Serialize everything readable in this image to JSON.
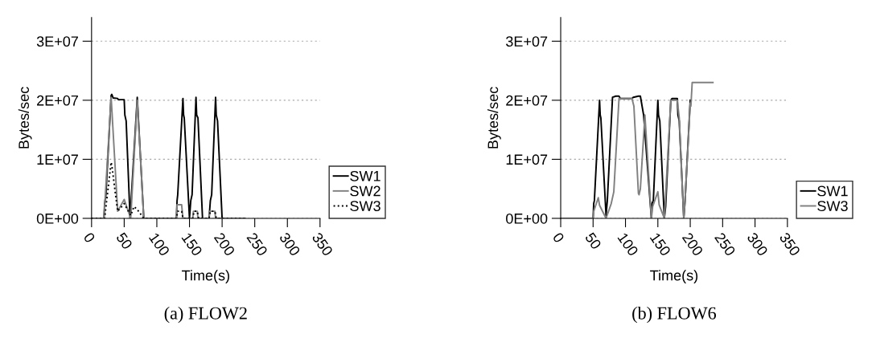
{
  "chart_data": [
    {
      "type": "line",
      "title": "(a) FLOW2",
      "xlabel": "Time(s)",
      "ylabel": "Bytes/sec",
      "xlim": [
        0,
        350
      ],
      "xticks": [
        0,
        50,
        100,
        150,
        200,
        250,
        300,
        350
      ],
      "ylim": [
        0,
        34000000
      ],
      "yticks": [
        {
          "value": 0,
          "label": "0E+00"
        },
        {
          "value": 10000000,
          "label": "1E+07"
        },
        {
          "value": 20000000,
          "label": "2E+07"
        },
        {
          "value": 30000000,
          "label": "3E+07"
        }
      ],
      "grid": "y",
      "legend": "right",
      "marker": "none",
      "series": [
        {
          "name": "SW1",
          "color": "#000000",
          "line_style": "solid",
          "x": [
            0,
            19,
            20,
            22,
            30,
            31,
            33,
            40,
            41,
            50,
            51,
            53,
            59,
            70,
            80,
            130,
            131,
            132,
            140,
            141,
            142,
            150,
            152,
            154,
            160,
            161,
            163,
            170,
            180,
            182,
            184,
            190,
            191,
            193,
            200,
            235
          ],
          "values": [
            0,
            0,
            2500000,
            4000000,
            20800000,
            21000000,
            20400000,
            20300000,
            20100000,
            20100000,
            17500000,
            16500000,
            0,
            20500000,
            0,
            0,
            3000000,
            4000000,
            20300000,
            17500000,
            17000000,
            0,
            3000000,
            4000000,
            20500000,
            17500000,
            17000000,
            0,
            0,
            3000000,
            4000000,
            20500000,
            17500000,
            16500000,
            0,
            0
          ]
        },
        {
          "name": "SW2",
          "color": "#808080",
          "line_style": "solid",
          "x": [
            0,
            19,
            30,
            40,
            50,
            60,
            70,
            80,
            130,
            131,
            138,
            140,
            155,
            156,
            162,
            163,
            180,
            181,
            189,
            190,
            235
          ],
          "values": [
            0,
            0,
            20500000,
            1200000,
            3200000,
            0,
            20000000,
            0,
            0,
            2300000,
            2300000,
            0,
            0,
            1200000,
            1200000,
            0,
            0,
            1200000,
            1200000,
            0,
            0
          ]
        },
        {
          "name": "SW3",
          "color": "#000000",
          "line_style": "dotted",
          "x": [
            0,
            20,
            30,
            31,
            40,
            50,
            55,
            60,
            65,
            70,
            80,
            130,
            132,
            138,
            140,
            155,
            157,
            162,
            164,
            180,
            182,
            189,
            191,
            235
          ],
          "values": [
            0,
            0,
            9500000,
            9000000,
            1200000,
            2500000,
            1500000,
            500000,
            2000000,
            1500000,
            0,
            0,
            1200000,
            1200000,
            0,
            0,
            1200000,
            1200000,
            0,
            0,
            1200000,
            1200000,
            0,
            0
          ]
        }
      ]
    },
    {
      "type": "line",
      "title": "(b) FLOW6",
      "xlabel": "Time(s)",
      "ylabel": "Bytes/sec",
      "xlim": [
        0,
        350
      ],
      "xticks": [
        0,
        50,
        100,
        150,
        200,
        250,
        300,
        350
      ],
      "ylim": [
        0,
        34000000
      ],
      "yticks": [
        {
          "value": 0,
          "label": "0E+00"
        },
        {
          "value": 10000000,
          "label": "1E+07"
        },
        {
          "value": 20000000,
          "label": "2E+07"
        },
        {
          "value": 30000000,
          "label": "3E+07"
        }
      ],
      "grid": "y",
      "legend": "right",
      "marker": "none",
      "series": [
        {
          "name": "SW1",
          "color": "#000000",
          "line_style": "solid",
          "x": [
            0,
            50,
            51,
            52,
            60,
            61,
            62,
            70,
            72,
            80,
            85,
            90,
            92,
            110,
            112,
            120,
            123,
            128,
            140,
            141,
            143,
            150,
            151,
            153,
            160,
            162,
            170,
            172,
            180,
            181,
            183,
            190,
            192,
            200
          ],
          "values": [
            0,
            0,
            2500000,
            3000000,
            20000000,
            17500000,
            17000000,
            500000,
            3000000,
            20500000,
            20700000,
            20700000,
            20300000,
            20300000,
            20500000,
            20700000,
            20700000,
            17500000,
            0,
            2500000,
            3000000,
            20000000,
            17500000,
            16500000,
            0,
            2000000,
            20000000,
            20300000,
            20300000,
            17500000,
            16500000,
            0,
            3000000,
            20000000
          ]
        },
        {
          "name": "SW3",
          "color": "#808080",
          "line_style": "solid",
          "x": [
            0,
            50,
            51,
            58,
            60,
            70,
            78,
            82,
            90,
            110,
            113,
            120,
            121,
            123,
            130,
            140,
            142,
            150,
            152,
            160,
            170,
            180,
            183,
            190,
            192,
            200,
            201,
            203,
            235
          ],
          "values": [
            0,
            0,
            1200000,
            3500000,
            2200000,
            0,
            2500000,
            4500000,
            20300000,
            20300000,
            19000000,
            4200000,
            4000000,
            5000000,
            17500000,
            0,
            2000000,
            4500000,
            2300000,
            0,
            20000000,
            20000000,
            17000000,
            0,
            3000000,
            19500000,
            19000000,
            23000000,
            23000000
          ]
        }
      ]
    }
  ]
}
